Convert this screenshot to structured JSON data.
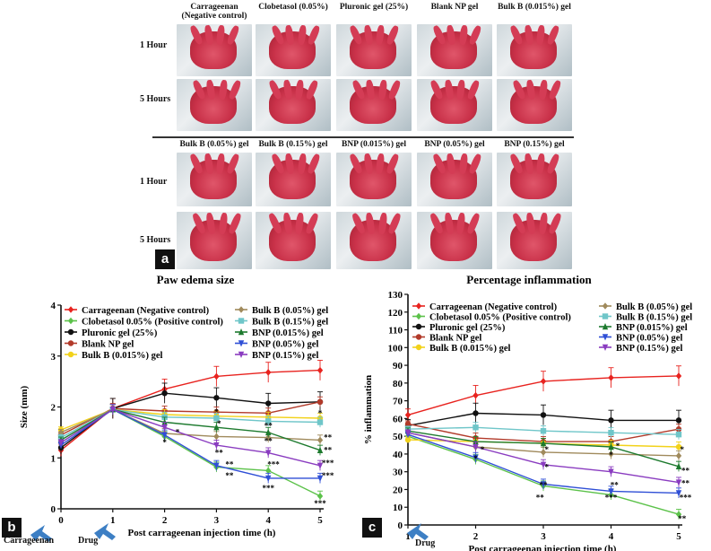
{
  "panel_a": {
    "letter": "a",
    "top_columns": [
      "Carrageenan (Negative control)",
      "Clobetasol (0.05%)",
      "Pluronic gel (25%)",
      "Blank NP gel",
      "Bulk B (0.015%) gel"
    ],
    "bottom_columns": [
      "Bulk B (0.05%) gel",
      "Bulk B (0.15%) gel",
      "BNP (0.015%) gel",
      "BNP (0.05%) gel",
      "BNP (0.15%) gel"
    ],
    "rows": [
      "1 Hour",
      "5 Hours"
    ]
  },
  "colors": {
    "carrageenan": "#e8231f",
    "clobetasol": "#5cc24a",
    "pluronic": "#111111",
    "blank_np": "#b23a2a",
    "bulk_b_0015": "#f2d21a",
    "bulk_b_005": "#a08a5c",
    "bulk_b_015": "#6fc6c9",
    "bnp_0015": "#1d7a2e",
    "bnp_005": "#2f4fd6",
    "bnp_015": "#8a3cc0"
  },
  "panel_b": {
    "letter": "b",
    "annotation_left": "Carrageenan",
    "annotation_drug": "Drug"
  },
  "panel_c": {
    "letter": "c",
    "annotation_drug": "Drug"
  },
  "chart_data": [
    {
      "type": "line",
      "title": "Paw edema size",
      "xlabel": "Post carrageenan injection time (h)",
      "ylabel": "Size (mm)",
      "x": [
        0,
        1,
        2,
        3,
        4,
        5
      ],
      "xlim": [
        0,
        5
      ],
      "ylim": [
        0,
        4
      ],
      "xticks": [
        "0",
        "1",
        "2",
        "3",
        "4",
        "5"
      ],
      "yticks": [
        "0",
        "1",
        "2",
        "3",
        "4"
      ],
      "series": [
        {
          "name": "Carrageenan (Negative control)",
          "color": "carrageenan",
          "values": [
            1.15,
            1.97,
            2.35,
            2.6,
            2.68,
            2.72
          ]
        },
        {
          "name": "Clobetasol 0.05% (Positive control)",
          "color": "clobetasol",
          "values": [
            1.3,
            1.95,
            1.42,
            0.82,
            0.75,
            0.25
          ]
        },
        {
          "name": "Pluronic gel (25%)",
          "color": "pluronic",
          "values": [
            1.2,
            1.97,
            2.27,
            2.18,
            2.07,
            2.1
          ]
        },
        {
          "name": "Blank NP gel",
          "color": "blank_np",
          "values": [
            1.45,
            1.97,
            1.92,
            1.9,
            1.88,
            2.1
          ]
        },
        {
          "name": "Bulk B (0.015%) gel",
          "color": "bulk_b_0015",
          "values": [
            1.55,
            1.95,
            1.85,
            1.82,
            1.8,
            1.78
          ]
        },
        {
          "name": "Bulk B (0.05%) gel",
          "color": "bulk_b_005",
          "values": [
            1.5,
            1.95,
            1.48,
            1.42,
            1.4,
            1.35
          ]
        },
        {
          "name": "Bulk B (0.15%) gel",
          "color": "bulk_b_015",
          "values": [
            1.4,
            1.95,
            1.8,
            1.78,
            1.72,
            1.7
          ]
        },
        {
          "name": "BNP (0.015%) gel",
          "color": "bnp_0015",
          "values": [
            1.35,
            1.95,
            1.7,
            1.6,
            1.5,
            1.15
          ]
        },
        {
          "name": "BNP (0.05%) gel",
          "color": "bnp_005",
          "values": [
            1.25,
            1.95,
            1.45,
            0.85,
            0.6,
            0.6
          ]
        },
        {
          "name": "BNP (0.15%) gel",
          "color": "bnp_015",
          "values": [
            1.3,
            1.95,
            1.6,
            1.25,
            1.1,
            0.85
          ]
        }
      ],
      "legend_col1": [
        "Carrageenan (Negative control)",
        "Clobetasol 0.05% (Positive control)",
        "Pluronic gel (25%)",
        "Blank NP gel",
        "Bulk B (0.015%) gel"
      ],
      "legend_col2": [
        "Bulk B (0.05%) gel",
        "Bulk B (0.15%) gel",
        "BNP (0.015%) gel",
        "BNP (0.05%) gel",
        "BNP (0.15%) gel"
      ],
      "annotations": [
        {
          "x": 2,
          "y": 1.25,
          "text": "*"
        },
        {
          "x": 2.25,
          "y": 1.45,
          "text": "*"
        },
        {
          "x": 3,
          "y": 1.85,
          "text": "*"
        },
        {
          "x": 3.05,
          "y": 1.62,
          "text": "*"
        },
        {
          "x": 3.05,
          "y": 1.05,
          "text": "**"
        },
        {
          "x": 3.25,
          "y": 0.82,
          "text": "**"
        },
        {
          "x": 3.25,
          "y": 0.6,
          "text": "**"
        },
        {
          "x": 4,
          "y": 1.58,
          "text": "**"
        },
        {
          "x": 4,
          "y": 1.28,
          "text": "**"
        },
        {
          "x": 4.1,
          "y": 0.82,
          "text": "***"
        },
        {
          "x": 4,
          "y": 0.35,
          "text": "***"
        },
        {
          "x": 5,
          "y": 1.82,
          "text": "*"
        },
        {
          "x": 5.15,
          "y": 1.35,
          "text": "**"
        },
        {
          "x": 5.15,
          "y": 1.1,
          "text": "**"
        },
        {
          "x": 5.15,
          "y": 0.85,
          "text": "***"
        },
        {
          "x": 5.15,
          "y": 0.6,
          "text": "***"
        },
        {
          "x": 5,
          "y": 0.05,
          "text": "***"
        }
      ]
    },
    {
      "type": "line",
      "title": "Percentage inflammation",
      "xlabel": "Post carrageenan injection time (h)",
      "ylabel": "% inflammation",
      "x": [
        1,
        2,
        3,
        4,
        5
      ],
      "xlim": [
        1,
        5
      ],
      "ylim": [
        0,
        130
      ],
      "xticks": [
        "1",
        "2",
        "3",
        "4",
        "5"
      ],
      "yticks": [
        "0",
        "10",
        "20",
        "30",
        "40",
        "50",
        "60",
        "70",
        "80",
        "90",
        "100",
        "110",
        "120",
        "130"
      ],
      "series": [
        {
          "name": "Carrageenan (Negative control)",
          "color": "carrageenan",
          "values": [
            62,
            73,
            81,
            83,
            84
          ]
        },
        {
          "name": "Clobetasol 0.05% (Positive control)",
          "color": "clobetasol",
          "values": [
            50,
            37,
            22,
            17,
            6
          ]
        },
        {
          "name": "Pluronic gel (25%)",
          "color": "pluronic",
          "values": [
            56,
            63,
            62,
            59,
            59
          ]
        },
        {
          "name": "Blank NP gel",
          "color": "blank_np",
          "values": [
            57,
            49,
            47,
            47,
            54
          ]
        },
        {
          "name": "Bulk B (0.015%) gel",
          "color": "bulk_b_0015",
          "values": [
            48,
            47,
            46,
            45,
            44
          ]
        },
        {
          "name": "Bulk B (0.05%) gel",
          "color": "bulk_b_005",
          "values": [
            52,
            44,
            41,
            40,
            39
          ]
        },
        {
          "name": "Bulk B (0.15%) gel",
          "color": "bulk_b_015",
          "values": [
            54,
            55,
            53,
            52,
            51
          ]
        },
        {
          "name": "BNP (0.015%) gel",
          "color": "bnp_0015",
          "values": [
            53,
            47,
            46,
            44,
            33
          ]
        },
        {
          "name": "BNP (0.05%) gel",
          "color": "bnp_005",
          "values": [
            51,
            38,
            23,
            19,
            18
          ]
        },
        {
          "name": "BNP (0.15%) gel",
          "color": "bnp_015",
          "values": [
            52,
            44,
            34,
            30,
            24
          ]
        }
      ],
      "legend_col1": [
        "Carrageenan (Negative control)",
        "Clobetasol 0.05% (Positive control)",
        "Pluronic gel (25%)",
        "Blank NP gel",
        "Bulk B (0.015%) gel"
      ],
      "legend_col2": [
        "Bulk B (0.05%) gel",
        "Bulk B (0.15%) gel",
        "BNP (0.015%) gel",
        "BNP (0.05%) gel",
        "BNP (0.15%) gel"
      ],
      "annotations": [
        {
          "x": 2,
          "y": 36,
          "text": "*"
        },
        {
          "x": 2.1,
          "y": 41,
          "text": "*"
        },
        {
          "x": 3.05,
          "y": 41,
          "text": "*"
        },
        {
          "x": 3.05,
          "y": 31,
          "text": "*"
        },
        {
          "x": 3,
          "y": 21,
          "text": "**"
        },
        {
          "x": 2.95,
          "y": 14,
          "text": "**"
        },
        {
          "x": 4,
          "y": 38,
          "text": "*"
        },
        {
          "x": 4.1,
          "y": 43,
          "text": "*"
        },
        {
          "x": 4.05,
          "y": 21,
          "text": "**"
        },
        {
          "x": 4,
          "y": 14,
          "text": "***"
        },
        {
          "x": 5.05,
          "y": 41,
          "text": "*"
        },
        {
          "x": 5.1,
          "y": 29,
          "text": "**"
        },
        {
          "x": 5.1,
          "y": 22,
          "text": "**"
        },
        {
          "x": 5.1,
          "y": 14,
          "text": "***"
        },
        {
          "x": 5.05,
          "y": 2,
          "text": "**"
        }
      ]
    }
  ]
}
